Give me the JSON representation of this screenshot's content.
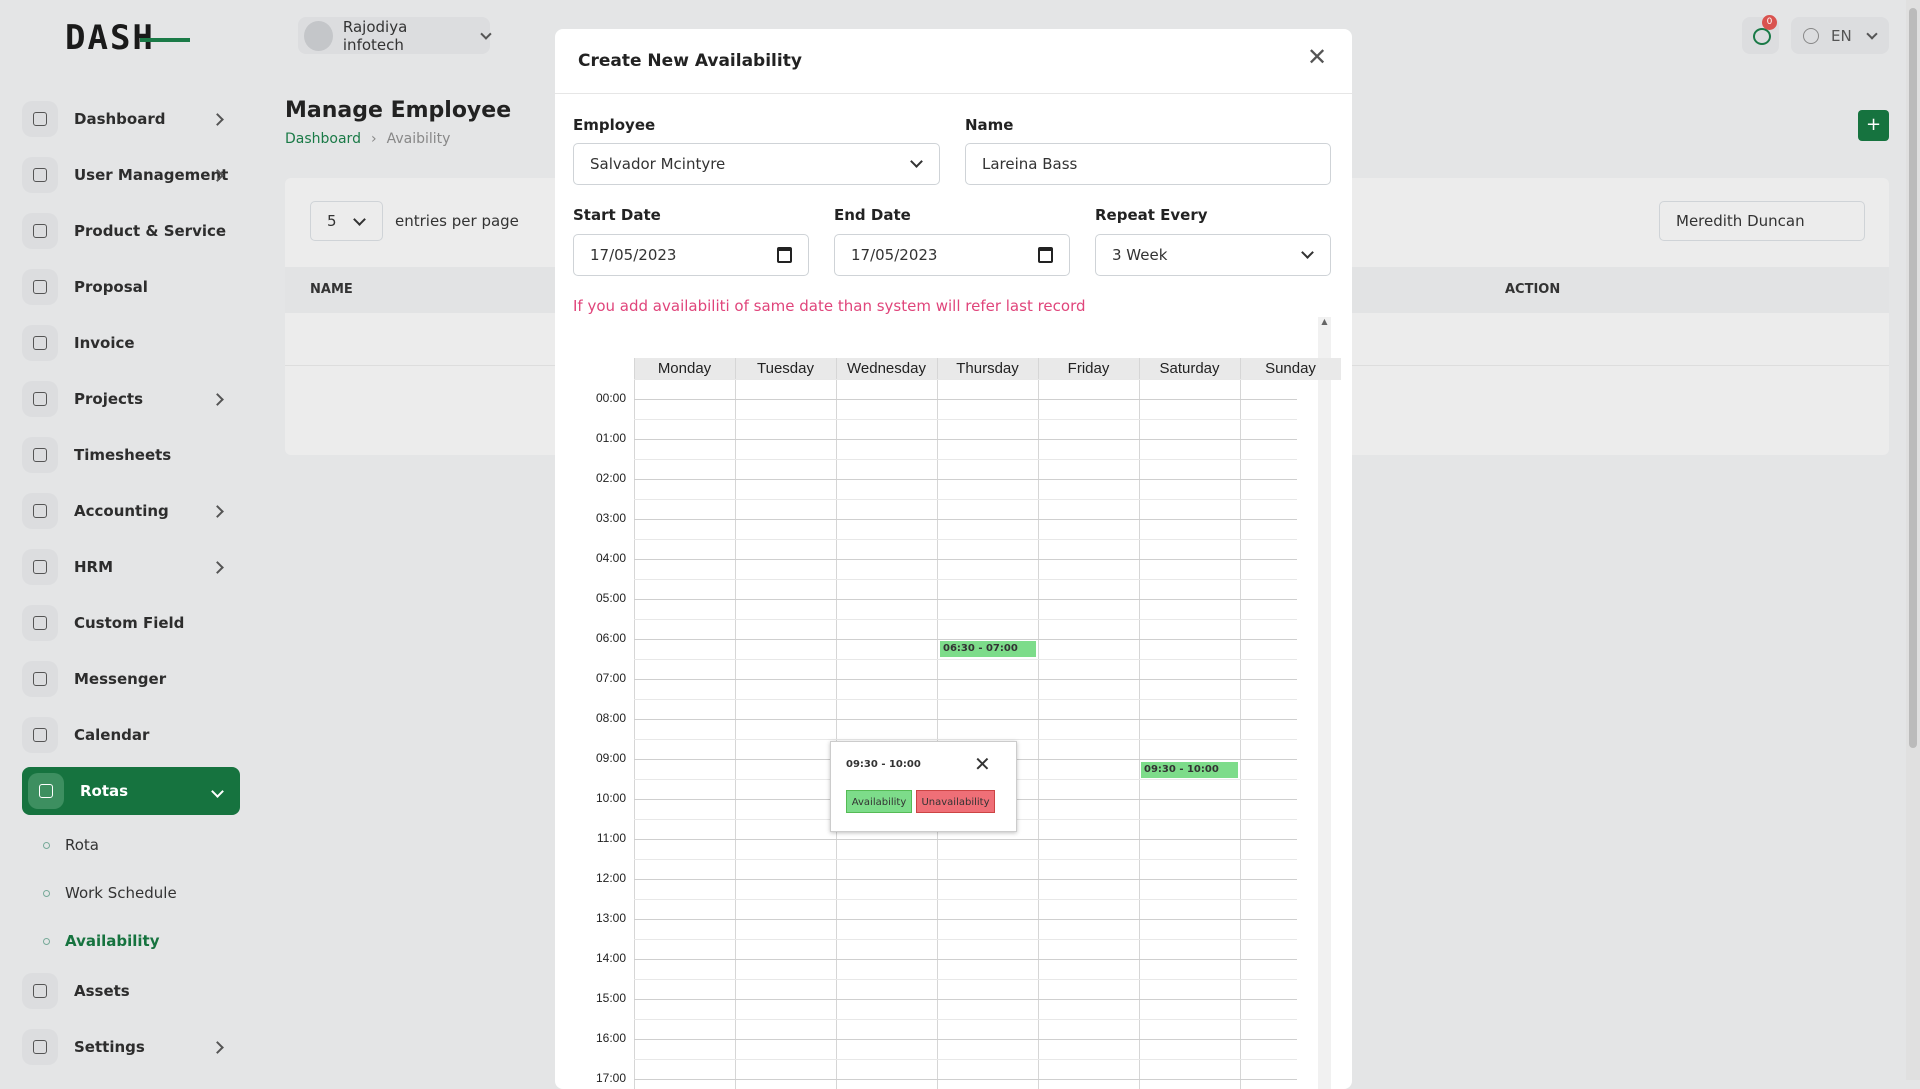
{
  "sidebar": {
    "logo": "DASH",
    "menu": [
      "Dashboard",
      "User Management",
      "Product & Service",
      "Proposal",
      "Invoice",
      "Projects",
      "Timesheets",
      "Accounting",
      "HRM",
      "Custom Field",
      "Messenger",
      "Calendar",
      "Rotas"
    ],
    "submenu": [
      "Rota",
      "Work Schedule",
      "Availability"
    ],
    "menu_after": [
      "Assets",
      "Settings"
    ]
  },
  "topbar": {
    "company": "Rajodiya infotech",
    "notification_count": 0,
    "language": "EN"
  },
  "page": {
    "title": "Manage Employee",
    "breadcrumb": [
      "Dashboard",
      "Avaibility"
    ],
    "entries": 5,
    "entries_label": "entries per page",
    "search": "Meredith Duncan",
    "columns": [
      "NAME",
      "ACTION"
    ]
  },
  "modal": {
    "title": "Create New Availability",
    "employee": {
      "label": "Employee",
      "value": "Salvador Mcintyre"
    },
    "name": {
      "label": "Name",
      "value": "Lareina Bass"
    },
    "start_date": {
      "label": "Start Date",
      "value": "17/05/2023"
    },
    "end_date": {
      "label": "End Date",
      "value": "17/05/2023"
    },
    "repeat": {
      "label": "Repeat Every",
      "value": "3 Week"
    },
    "warning": "If you add availabiliti of same date than system will refer last record",
    "calendar": {
      "days": [
        "Monday",
        "Tuesday",
        "Wednesday",
        "Thursday",
        "Friday",
        "Saturday",
        "Sunday"
      ],
      "hours": [
        "00:00",
        "01:00",
        "02:00",
        "03:00",
        "04:00",
        "05:00",
        "06:00",
        "07:00",
        "08:00",
        "09:00",
        "10:00",
        "11:00",
        "12:00",
        "13:00",
        "14:00",
        "15:00",
        "16:00",
        "17:00"
      ],
      "events": [
        "06:30 - 07:00",
        "09:30 - 10:00"
      ]
    },
    "popup": {
      "time": "09:30 - 10:00",
      "buttons": [
        "Availability",
        "Unavailability"
      ]
    }
  }
}
